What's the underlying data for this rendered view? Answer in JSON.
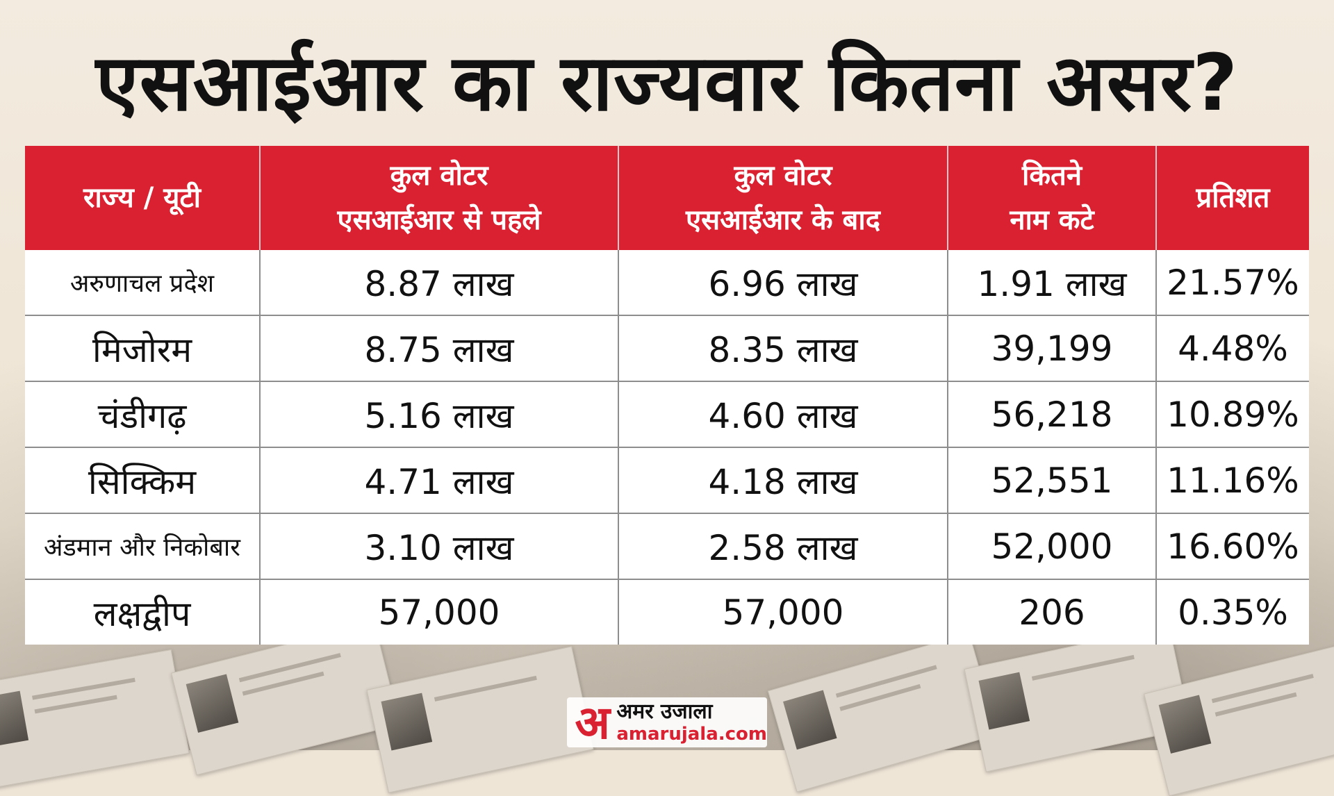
{
  "title": "एसआईआर का राज्यवार कितना असर?",
  "colors": {
    "header_bg": "#d92131",
    "header_text": "#ffffff",
    "body_text": "#111111",
    "brand_red": "#d92131"
  },
  "table": {
    "headers": [
      {
        "line1": "राज्य / यूटी",
        "line2": ""
      },
      {
        "line1": "कुल वोटर",
        "line2": "एसआईआर से पहले"
      },
      {
        "line1": "कुल वोटर",
        "line2": "एसआईआर के बाद"
      },
      {
        "line1": "कितने",
        "line2": "नाम कटे"
      },
      {
        "line1": "प्रतिशत",
        "line2": ""
      }
    ],
    "rows": [
      {
        "state": "अरुणाचल प्रदेश",
        "before": "8.87 लाख",
        "after": "6.96 लाख",
        "removed": "1.91 लाख",
        "percent": "21.57%"
      },
      {
        "state": "मिजोरम",
        "before": "8.75 लाख",
        "after": "8.35 लाख",
        "removed": "39,199",
        "percent": "4.48%"
      },
      {
        "state": "चंडीगढ़",
        "before": "5.16 लाख",
        "after": "4.60 लाख",
        "removed": "56,218",
        "percent": "10.89%"
      },
      {
        "state": "सिक्किम",
        "before": "4.71 लाख",
        "after": "4.18 लाख",
        "removed": "52,551",
        "percent": "11.16%"
      },
      {
        "state": "अंडमान और निकोबार",
        "before": "3.10 लाख",
        "after": "2.58 लाख",
        "removed": "52,000",
        "percent": "16.60%"
      },
      {
        "state": "लक्षद्वीप",
        "before": "57,000",
        "after": "57,000",
        "removed": "206",
        "percent": "0.35%"
      }
    ]
  },
  "logo": {
    "mark": "अ",
    "brand": "अमर उजाला",
    "site": "amarujala.com"
  }
}
